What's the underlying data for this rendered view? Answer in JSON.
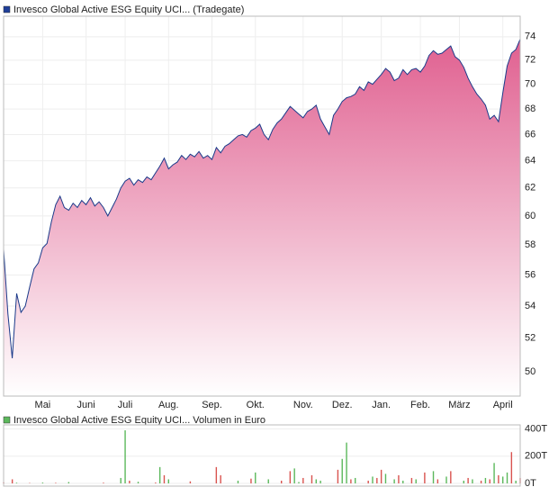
{
  "chart_data": [
    {
      "type": "area",
      "title": "Invesco Global Active ESG Equity UCI... (Tradegate)",
      "legend_color": "#1f3f99",
      "color": "#1a3a8a",
      "fill_top": "#e06090",
      "fill_bottom": "#ffffff",
      "log_scale": true,
      "grid": true,
      "ylim": [
        48.6,
        75.8
      ],
      "yticks": [
        50,
        52,
        54,
        56,
        58,
        60,
        62,
        64,
        66,
        68,
        70,
        72,
        74
      ],
      "categories": [
        null,
        null,
        null,
        null,
        null,
        null,
        null,
        null,
        null,
        "Mai",
        null,
        null,
        null,
        null,
        null,
        null,
        null,
        null,
        null,
        "Juni",
        null,
        null,
        null,
        null,
        null,
        null,
        null,
        null,
        "Juli",
        null,
        null,
        null,
        null,
        null,
        null,
        null,
        null,
        null,
        "Aug.",
        null,
        null,
        null,
        null,
        null,
        null,
        null,
        null,
        null,
        "Sep.",
        null,
        null,
        null,
        null,
        null,
        null,
        null,
        null,
        null,
        "Okt.",
        null,
        null,
        null,
        null,
        null,
        null,
        null,
        null,
        null,
        null,
        "Nov.",
        null,
        null,
        null,
        null,
        null,
        null,
        null,
        null,
        "Dez.",
        null,
        null,
        null,
        null,
        null,
        null,
        null,
        null,
        "Jan.",
        null,
        null,
        null,
        null,
        null,
        null,
        null,
        null,
        "Feb.",
        null,
        null,
        null,
        null,
        null,
        null,
        null,
        null,
        "März",
        null,
        null,
        null,
        null,
        null,
        null,
        null,
        null,
        null,
        "April",
        null,
        null,
        null,
        null
      ],
      "values": [
        57.7,
        53.5,
        50.8,
        54.8,
        53.6,
        54.0,
        55.2,
        56.4,
        56.8,
        57.8,
        58.1,
        59.6,
        60.8,
        61.4,
        60.6,
        60.4,
        60.9,
        60.6,
        61.1,
        60.8,
        61.3,
        60.7,
        61.0,
        60.6,
        60.0,
        60.6,
        61.2,
        62.0,
        62.5,
        62.7,
        62.2,
        62.6,
        62.4,
        62.8,
        62.6,
        63.1,
        63.6,
        64.2,
        63.4,
        63.7,
        63.9,
        64.4,
        64.1,
        64.5,
        64.3,
        64.7,
        64.2,
        64.4,
        64.1,
        65.0,
        64.6,
        65.1,
        65.3,
        65.6,
        65.9,
        66.0,
        65.8,
        66.3,
        66.5,
        66.8,
        66.0,
        65.6,
        66.4,
        66.9,
        67.2,
        67.7,
        68.2,
        67.9,
        67.6,
        67.3,
        67.8,
        68.0,
        68.3,
        67.2,
        66.6,
        66.0,
        67.5,
        68.0,
        68.6,
        68.9,
        69.0,
        69.2,
        69.8,
        69.5,
        70.2,
        70.0,
        70.4,
        70.8,
        71.3,
        71.0,
        70.3,
        70.5,
        71.2,
        70.8,
        71.2,
        71.3,
        71.0,
        71.5,
        72.4,
        72.8,
        72.5,
        72.6,
        72.9,
        73.2,
        72.3,
        72.0,
        71.4,
        70.5,
        69.8,
        69.2,
        68.8,
        68.3,
        67.2,
        67.5,
        67.0,
        69.3,
        71.5,
        72.6,
        72.9,
        73.8
      ]
    },
    {
      "type": "bar",
      "title": "Invesco Global Active ESG Equity UCI... Volumen in Euro",
      "legend_color": "#5cb85c",
      "colors": [
        "#5cb85c",
        "#d9534f"
      ],
      "ylim": [
        0,
        430
      ],
      "yticks": [
        {
          "value": 0,
          "label": "0T"
        },
        {
          "value": 200,
          "label": "200T"
        },
        {
          "value": 400,
          "label": "400T"
        }
      ],
      "values": [
        8,
        0,
        30,
        5,
        0,
        0,
        3,
        0,
        0,
        6,
        0,
        0,
        4,
        0,
        0,
        10,
        0,
        0,
        0,
        0,
        0,
        0,
        0,
        5,
        0,
        0,
        0,
        40,
        390,
        20,
        0,
        12,
        0,
        0,
        0,
        6,
        120,
        60,
        30,
        0,
        0,
        0,
        0,
        15,
        0,
        0,
        0,
        0,
        0,
        120,
        60,
        0,
        0,
        0,
        20,
        0,
        0,
        35,
        80,
        0,
        0,
        30,
        0,
        0,
        20,
        0,
        90,
        110,
        10,
        40,
        0,
        60,
        30,
        20,
        0,
        0,
        0,
        100,
        180,
        300,
        30,
        40,
        0,
        0,
        20,
        50,
        40,
        100,
        70,
        0,
        30,
        60,
        20,
        0,
        40,
        30,
        0,
        80,
        0,
        90,
        30,
        0,
        50,
        90,
        0,
        0,
        20,
        40,
        30,
        0,
        20,
        40,
        30,
        150,
        60,
        50,
        80,
        230,
        20,
        40
      ],
      "color_index": [
        1,
        0,
        1,
        0,
        0,
        0,
        1,
        0,
        0,
        0,
        0,
        0,
        1,
        0,
        0,
        0,
        0,
        0,
        0,
        0,
        0,
        0,
        0,
        1,
        0,
        0,
        0,
        0,
        0,
        1,
        0,
        0,
        0,
        0,
        0,
        1,
        0,
        1,
        0,
        0,
        0,
        0,
        0,
        1,
        0,
        0,
        0,
        0,
        0,
        1,
        1,
        0,
        0,
        0,
        0,
        0,
        0,
        1,
        0,
        0,
        0,
        0,
        0,
        0,
        1,
        0,
        1,
        0,
        0,
        1,
        0,
        1,
        0,
        0,
        0,
        0,
        0,
        1,
        0,
        0,
        1,
        0,
        0,
        0,
        1,
        0,
        1,
        1,
        0,
        0,
        0,
        1,
        0,
        0,
        1,
        0,
        0,
        1,
        0,
        0,
        1,
        0,
        0,
        1,
        0,
        0,
        0,
        1,
        0,
        0,
        1,
        0,
        1,
        0,
        1,
        0,
        0,
        1,
        0,
        1
      ]
    }
  ]
}
